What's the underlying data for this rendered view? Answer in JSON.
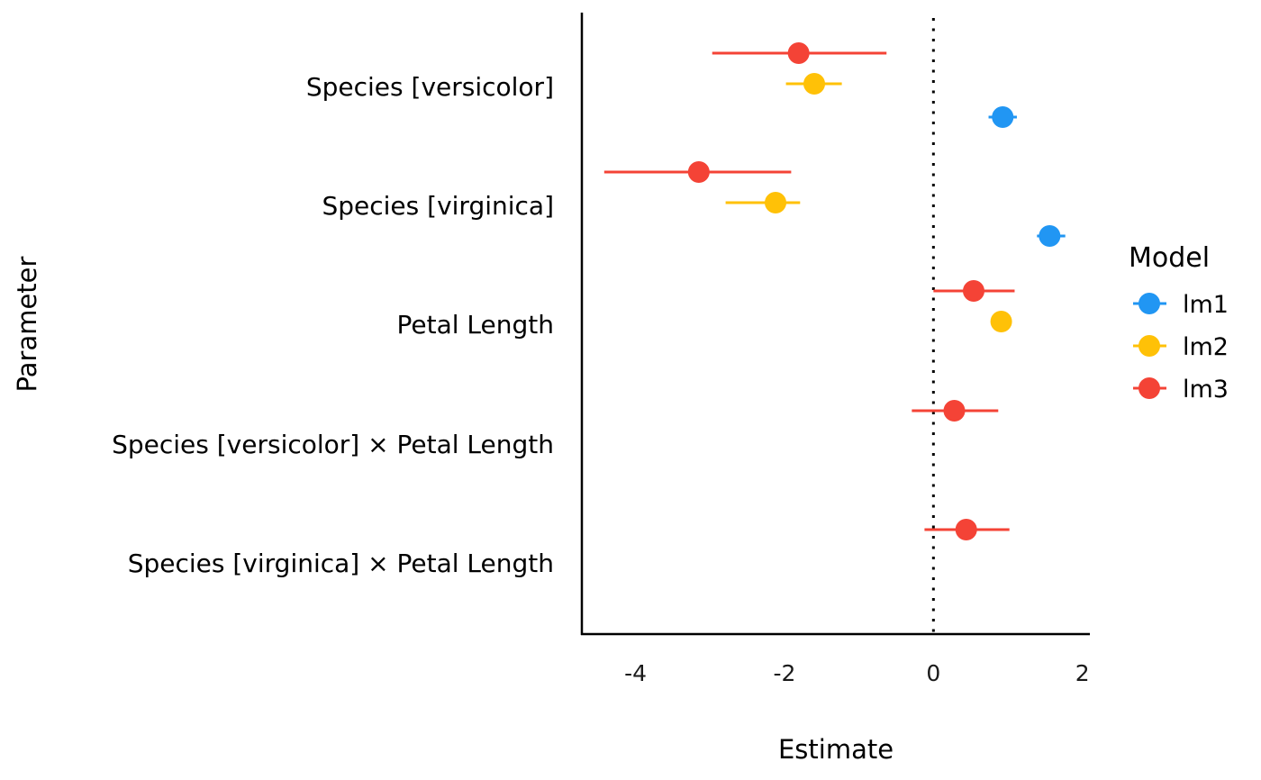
{
  "chart_data": {
    "type": "scatter",
    "subtype": "coefficient-plot-with-confidence-intervals",
    "title": "",
    "xlabel": "Estimate",
    "ylabel": "Parameter",
    "xlim": [
      -4.72,
      2.1
    ],
    "xticks": [
      -4,
      -2,
      0,
      2
    ],
    "xtick_labels": [
      "-4",
      "-2",
      "0",
      "2"
    ],
    "reference_line": {
      "x": 0,
      "style": "dotted"
    },
    "grid": false,
    "categories": [
      "Species [versicolor]",
      "Species [virginica]",
      "Petal Length",
      "Species [versicolor] × Petal Length",
      "Species [virginica] × Petal Length"
    ],
    "legend": {
      "title": "Model",
      "position": "right"
    },
    "series": [
      {
        "name": "lm1",
        "color": "#2196F3",
        "points": [
          {
            "parameter": "Species [versicolor]",
            "estimate": 0.93,
            "ci_low": 0.74,
            "ci_high": 1.12
          },
          {
            "parameter": "Species [virginica]",
            "estimate": 1.56,
            "ci_low": 1.39,
            "ci_high": 1.77
          }
        ]
      },
      {
        "name": "lm2",
        "color": "#FFC107",
        "points": [
          {
            "parameter": "Species [versicolor]",
            "estimate": -1.6,
            "ci_low": -1.98,
            "ci_high": -1.23
          },
          {
            "parameter": "Species [virginica]",
            "estimate": -2.12,
            "ci_low": -2.79,
            "ci_high": -1.79
          },
          {
            "parameter": "Petal Length",
            "estimate": 0.91,
            "ci_low": 0.87,
            "ci_high": 0.95
          }
        ]
      },
      {
        "name": "lm3",
        "color": "#F44336",
        "points": [
          {
            "parameter": "Species [versicolor]",
            "estimate": -1.81,
            "ci_low": -2.97,
            "ci_high": -0.63
          },
          {
            "parameter": "Species [virginica]",
            "estimate": -3.15,
            "ci_low": -4.42,
            "ci_high": -1.91
          },
          {
            "parameter": "Petal Length",
            "estimate": 0.54,
            "ci_low": 0.0,
            "ci_high": 1.09
          },
          {
            "parameter": "Species [versicolor] × Petal Length",
            "estimate": 0.28,
            "ci_low": -0.29,
            "ci_high": 0.87
          },
          {
            "parameter": "Species [virginica] × Petal Length",
            "estimate": 0.44,
            "ci_low": -0.12,
            "ci_high": 1.02
          }
        ]
      }
    ]
  }
}
